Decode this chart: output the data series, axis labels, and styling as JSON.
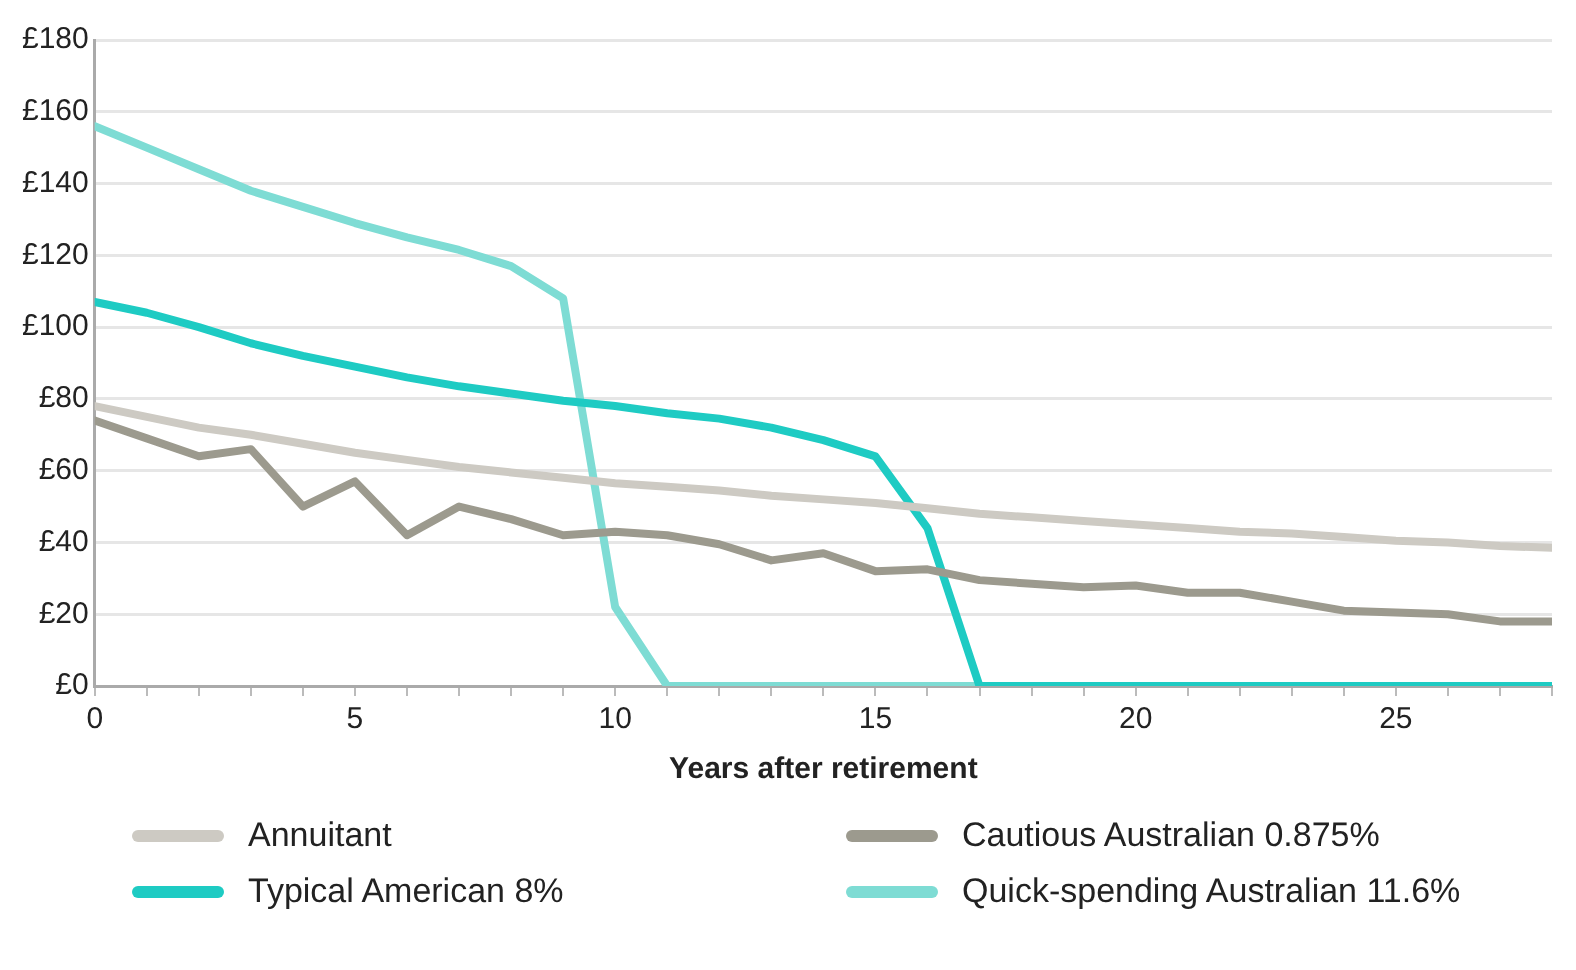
{
  "chart_data": {
    "type": "line",
    "xlabel": "Years after retirement",
    "x": [
      0,
      1,
      2,
      3,
      4,
      5,
      6,
      7,
      8,
      9,
      10,
      11,
      12,
      13,
      14,
      15,
      16,
      17,
      18,
      19,
      20,
      21,
      22,
      23,
      24,
      25,
      26,
      27,
      28
    ],
    "series": [
      {
        "name": "Annuitant",
        "color": "#cdcac3",
        "values": [
          78,
          75,
          72,
          70,
          67.5,
          65,
          63,
          61,
          59.5,
          58,
          56.5,
          55.5,
          54.5,
          53,
          52,
          51,
          49.5,
          48,
          47,
          46,
          45,
          44,
          43,
          42.5,
          41.5,
          40.5,
          40,
          39,
          38.5
        ]
      },
      {
        "name": "Cautious Australian 0.875%",
        "color": "#9c9a8e",
        "values": [
          74,
          69,
          64,
          66,
          50,
          57,
          42,
          50,
          46.5,
          42,
          43,
          42,
          39.5,
          35,
          37,
          32,
          32.5,
          29.5,
          28.5,
          27.5,
          28,
          26,
          26,
          23.5,
          21,
          20.5,
          20,
          18,
          18
        ]
      },
      {
        "name": "Typical American 8%",
        "color": "#1ecbc3",
        "values": [
          107,
          104,
          100,
          95.5,
          92,
          89,
          86,
          83.5,
          81.5,
          79.5,
          78,
          76,
          74.5,
          72,
          68.5,
          64,
          44,
          0,
          0,
          0,
          0,
          0,
          0,
          0,
          0,
          0,
          0,
          0,
          0
        ]
      },
      {
        "name": "Quick-spending Australian 11.6%",
        "color": "#7edcd4",
        "values": [
          156,
          150,
          144,
          138,
          133.5,
          129,
          125,
          121.5,
          117,
          108,
          22,
          0,
          0,
          0,
          0,
          0,
          0,
          0,
          0,
          0,
          0,
          0,
          0,
          0,
          0,
          0,
          0,
          0,
          0
        ]
      }
    ],
    "xlim": [
      0,
      28
    ],
    "xticks": [
      0,
      {
        "value": 1,
        "label": null
      },
      {
        "value": 2,
        "label": null
      },
      {
        "value": 3,
        "label": null
      },
      {
        "value": 4,
        "label": null
      },
      5,
      {
        "value": 6,
        "label": null
      },
      {
        "value": 7,
        "label": null
      },
      {
        "value": 8,
        "label": null
      },
      {
        "value": 9,
        "label": null
      },
      10,
      {
        "value": 11,
        "label": null
      },
      {
        "value": 12,
        "label": null
      },
      {
        "value": 13,
        "label": null
      },
      {
        "value": 14,
        "label": null
      },
      15,
      {
        "value": 16,
        "label": null
      },
      {
        "value": 17,
        "label": null
      },
      {
        "value": 18,
        "label": null
      },
      {
        "value": 19,
        "label": null
      },
      20,
      {
        "value": 21,
        "label": null
      },
      {
        "value": 22,
        "label": null
      },
      {
        "value": 23,
        "label": null
      },
      {
        "value": 24,
        "label": null
      },
      25,
      {
        "value": 26,
        "label": null
      },
      {
        "value": 27,
        "label": null
      },
      {
        "value": 28,
        "label": null
      }
    ],
    "ylim": [
      0,
      180
    ],
    "yticks": [
      {
        "value": 0,
        "label": "£0"
      },
      {
        "value": 20,
        "label": "£20"
      },
      {
        "value": 40,
        "label": "£40"
      },
      {
        "value": 60,
        "label": "£60"
      },
      {
        "value": 80,
        "label": "£80"
      },
      {
        "value": 100,
        "label": "£100"
      },
      {
        "value": 120,
        "label": "£120"
      },
      {
        "value": 140,
        "label": "£140"
      },
      {
        "value": 160,
        "label": "£160"
      },
      {
        "value": 180,
        "label": "£180"
      }
    ],
    "grid": "y",
    "legend": "bottom",
    "marker": "none",
    "line_style": "solid"
  }
}
